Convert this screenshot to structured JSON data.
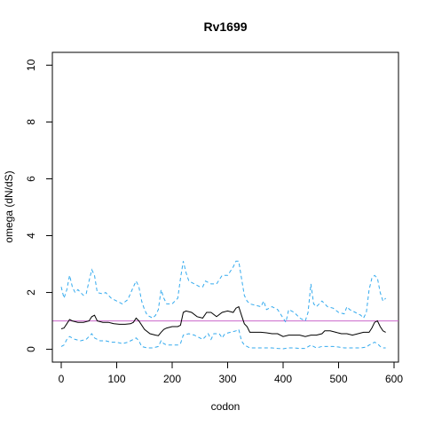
{
  "chart_data": {
    "type": "line",
    "title": "Rv1699",
    "xlabel": "codon",
    "ylabel": "omega (dN/dS)",
    "xlim": [
      -16,
      608
    ],
    "ylim": [
      -0.45,
      10.45
    ],
    "xticks": [
      0,
      100,
      200,
      300,
      400,
      500,
      600
    ],
    "yticks": [
      0,
      2,
      4,
      6,
      8,
      10
    ],
    "reference_line": {
      "y": 1,
      "color": "#cc66cc"
    },
    "grid": false,
    "legend": "none",
    "series": [
      {
        "role": "estimate",
        "color": "#000000",
        "dash": "solid",
        "points": [
          [
            0,
            0.72
          ],
          [
            5,
            0.75
          ],
          [
            10,
            0.9
          ],
          [
            15,
            1.05
          ],
          [
            20,
            1.0
          ],
          [
            30,
            0.95
          ],
          [
            40,
            0.95
          ],
          [
            50,
            1.0
          ],
          [
            55,
            1.15
          ],
          [
            60,
            1.2
          ],
          [
            65,
            1.0
          ],
          [
            75,
            0.95
          ],
          [
            85,
            0.95
          ],
          [
            95,
            0.9
          ],
          [
            105,
            0.88
          ],
          [
            115,
            0.88
          ],
          [
            125,
            0.9
          ],
          [
            130,
            0.95
          ],
          [
            135,
            1.1
          ],
          [
            140,
            1.0
          ],
          [
            150,
            0.7
          ],
          [
            160,
            0.55
          ],
          [
            170,
            0.5
          ],
          [
            175,
            0.48
          ],
          [
            180,
            0.6
          ],
          [
            185,
            0.7
          ],
          [
            190,
            0.75
          ],
          [
            200,
            0.8
          ],
          [
            210,
            0.8
          ],
          [
            215,
            0.85
          ],
          [
            220,
            1.3
          ],
          [
            225,
            1.35
          ],
          [
            235,
            1.3
          ],
          [
            245,
            1.15
          ],
          [
            255,
            1.1
          ],
          [
            262,
            1.3
          ],
          [
            270,
            1.3
          ],
          [
            280,
            1.15
          ],
          [
            290,
            1.3
          ],
          [
            300,
            1.35
          ],
          [
            310,
            1.3
          ],
          [
            315,
            1.45
          ],
          [
            320,
            1.5
          ],
          [
            325,
            1.2
          ],
          [
            330,
            0.9
          ],
          [
            335,
            0.8
          ],
          [
            340,
            0.6
          ],
          [
            350,
            0.6
          ],
          [
            360,
            0.6
          ],
          [
            370,
            0.58
          ],
          [
            380,
            0.55
          ],
          [
            390,
            0.55
          ],
          [
            400,
            0.45
          ],
          [
            410,
            0.5
          ],
          [
            420,
            0.5
          ],
          [
            430,
            0.5
          ],
          [
            440,
            0.45
          ],
          [
            450,
            0.5
          ],
          [
            460,
            0.5
          ],
          [
            470,
            0.55
          ],
          [
            475,
            0.65
          ],
          [
            485,
            0.65
          ],
          [
            495,
            0.6
          ],
          [
            505,
            0.55
          ],
          [
            515,
            0.55
          ],
          [
            525,
            0.5
          ],
          [
            535,
            0.55
          ],
          [
            545,
            0.6
          ],
          [
            555,
            0.6
          ],
          [
            560,
            0.75
          ],
          [
            565,
            0.95
          ],
          [
            570,
            1.0
          ],
          [
            575,
            0.8
          ],
          [
            580,
            0.65
          ],
          [
            585,
            0.6
          ]
        ]
      },
      {
        "role": "upper",
        "color": "#33aaee",
        "dash": "dashed",
        "points": [
          [
            0,
            2.2
          ],
          [
            5,
            1.8
          ],
          [
            10,
            2.1
          ],
          [
            15,
            2.6
          ],
          [
            20,
            2.2
          ],
          [
            25,
            2.0
          ],
          [
            30,
            2.1
          ],
          [
            35,
            2.0
          ],
          [
            40,
            1.9
          ],
          [
            45,
            1.95
          ],
          [
            50,
            2.4
          ],
          [
            55,
            2.8
          ],
          [
            60,
            2.6
          ],
          [
            65,
            2.0
          ],
          [
            75,
            1.95
          ],
          [
            80,
            2.0
          ],
          [
            90,
            1.8
          ],
          [
            100,
            1.7
          ],
          [
            110,
            1.6
          ],
          [
            120,
            1.75
          ],
          [
            130,
            2.2
          ],
          [
            135,
            2.4
          ],
          [
            140,
            2.2
          ],
          [
            145,
            1.7
          ],
          [
            150,
            1.4
          ],
          [
            155,
            1.2
          ],
          [
            165,
            1.1
          ],
          [
            170,
            1.2
          ],
          [
            175,
            1.4
          ],
          [
            180,
            2.1
          ],
          [
            185,
            1.8
          ],
          [
            190,
            1.6
          ],
          [
            200,
            1.6
          ],
          [
            210,
            1.8
          ],
          [
            215,
            2.5
          ],
          [
            220,
            3.1
          ],
          [
            225,
            2.7
          ],
          [
            230,
            2.4
          ],
          [
            240,
            2.3
          ],
          [
            250,
            2.2
          ],
          [
            255,
            2.2
          ],
          [
            260,
            2.4
          ],
          [
            270,
            2.3
          ],
          [
            280,
            2.3
          ],
          [
            290,
            2.6
          ],
          [
            300,
            2.6
          ],
          [
            310,
            2.9
          ],
          [
            315,
            3.1
          ],
          [
            320,
            3.1
          ],
          [
            325,
            2.5
          ],
          [
            330,
            1.9
          ],
          [
            335,
            1.7
          ],
          [
            340,
            1.6
          ],
          [
            350,
            1.55
          ],
          [
            360,
            1.5
          ],
          [
            365,
            1.7
          ],
          [
            370,
            1.4
          ],
          [
            380,
            1.5
          ],
          [
            390,
            1.4
          ],
          [
            400,
            1.1
          ],
          [
            405,
            0.95
          ],
          [
            410,
            1.4
          ],
          [
            420,
            1.3
          ],
          [
            430,
            1.1
          ],
          [
            440,
            1.0
          ],
          [
            445,
            1.3
          ],
          [
            450,
            2.3
          ],
          [
            455,
            1.6
          ],
          [
            460,
            1.5
          ],
          [
            470,
            1.7
          ],
          [
            480,
            1.5
          ],
          [
            490,
            1.45
          ],
          [
            500,
            1.3
          ],
          [
            510,
            1.25
          ],
          [
            515,
            1.5
          ],
          [
            520,
            1.4
          ],
          [
            530,
            1.3
          ],
          [
            540,
            1.2
          ],
          [
            545,
            1.1
          ],
          [
            550,
            1.3
          ],
          [
            555,
            2.1
          ],
          [
            560,
            2.5
          ],
          [
            565,
            2.6
          ],
          [
            570,
            2.5
          ],
          [
            575,
            2.0
          ],
          [
            580,
            1.7
          ],
          [
            585,
            1.8
          ]
        ]
      },
      {
        "role": "lower",
        "color": "#33aaee",
        "dash": "dashed",
        "points": [
          [
            0,
            0.1
          ],
          [
            5,
            0.15
          ],
          [
            10,
            0.35
          ],
          [
            15,
            0.45
          ],
          [
            20,
            0.4
          ],
          [
            25,
            0.35
          ],
          [
            35,
            0.3
          ],
          [
            45,
            0.35
          ],
          [
            50,
            0.45
          ],
          [
            55,
            0.55
          ],
          [
            60,
            0.4
          ],
          [
            70,
            0.3
          ],
          [
            80,
            0.3
          ],
          [
            90,
            0.25
          ],
          [
            100,
            0.25
          ],
          [
            110,
            0.2
          ],
          [
            120,
            0.25
          ],
          [
            125,
            0.3
          ],
          [
            130,
            0.35
          ],
          [
            135,
            0.4
          ],
          [
            140,
            0.3
          ],
          [
            145,
            0.1
          ],
          [
            155,
            0.05
          ],
          [
            165,
            0.05
          ],
          [
            175,
            0.1
          ],
          [
            180,
            0.3
          ],
          [
            185,
            0.2
          ],
          [
            190,
            0.15
          ],
          [
            200,
            0.15
          ],
          [
            210,
            0.15
          ],
          [
            215,
            0.2
          ],
          [
            220,
            0.5
          ],
          [
            230,
            0.55
          ],
          [
            240,
            0.5
          ],
          [
            250,
            0.4
          ],
          [
            255,
            0.35
          ],
          [
            260,
            0.45
          ],
          [
            265,
            0.55
          ],
          [
            270,
            0.35
          ],
          [
            275,
            0.55
          ],
          [
            285,
            0.55
          ],
          [
            290,
            0.4
          ],
          [
            295,
            0.55
          ],
          [
            305,
            0.6
          ],
          [
            315,
            0.65
          ],
          [
            320,
            0.7
          ],
          [
            325,
            0.3
          ],
          [
            330,
            0.15
          ],
          [
            340,
            0.05
          ],
          [
            350,
            0.05
          ],
          [
            360,
            0.05
          ],
          [
            370,
            0.05
          ],
          [
            380,
            0.05
          ],
          [
            390,
            0.03
          ],
          [
            400,
            0.02
          ],
          [
            410,
            0.05
          ],
          [
            420,
            0.05
          ],
          [
            430,
            0.03
          ],
          [
            440,
            0.03
          ],
          [
            450,
            0.15
          ],
          [
            455,
            0.1
          ],
          [
            460,
            0.05
          ],
          [
            470,
            0.1
          ],
          [
            480,
            0.1
          ],
          [
            490,
            0.1
          ],
          [
            500,
            0.08
          ],
          [
            510,
            0.05
          ],
          [
            520,
            0.05
          ],
          [
            530,
            0.05
          ],
          [
            540,
            0.05
          ],
          [
            550,
            0.08
          ],
          [
            555,
            0.15
          ],
          [
            560,
            0.2
          ],
          [
            565,
            0.25
          ],
          [
            570,
            0.2
          ],
          [
            575,
            0.1
          ],
          [
            580,
            0.05
          ],
          [
            585,
            0.05
          ]
        ]
      }
    ]
  }
}
